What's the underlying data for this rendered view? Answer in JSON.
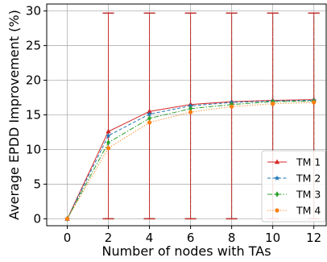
{
  "chart_data": {
    "type": "line",
    "xlabel": "Number of nodes with TAs",
    "ylabel": "Average EPDD Improvement (%)",
    "xlim": [
      -1,
      12.6
    ],
    "ylim": [
      -1,
      31
    ],
    "x_ticks": [
      "0",
      "2",
      "4",
      "6",
      "8",
      "10",
      "12"
    ],
    "y_ticks": [
      "0",
      "5",
      "10",
      "15",
      "20",
      "25",
      "30"
    ],
    "grid": true,
    "legend_position": "lower-right",
    "x": [
      0,
      2,
      4,
      6,
      8,
      10,
      12
    ],
    "error_low": [
      0,
      0,
      0,
      0,
      0,
      0,
      0
    ],
    "error_high": [
      0,
      29.7,
      29.7,
      29.7,
      29.7,
      29.7,
      29.7
    ],
    "series": [
      {
        "name": "TM 1",
        "values": [
          0,
          12.6,
          15.5,
          16.5,
          16.9,
          17.1,
          17.2
        ],
        "color": "#d62728",
        "marker": "triangle",
        "dash": "solid"
      },
      {
        "name": "TM 2",
        "values": [
          0,
          12.0,
          15.1,
          16.3,
          16.8,
          17.0,
          17.1
        ],
        "color": "#1f77b4",
        "marker": "star",
        "dash": "dashed"
      },
      {
        "name": "TM 3",
        "values": [
          0,
          11.0,
          14.5,
          15.9,
          16.5,
          16.9,
          17.0
        ],
        "color": "#2ca02c",
        "marker": "diamond",
        "dash": "dashdot"
      },
      {
        "name": "TM 4",
        "values": [
          0,
          10.2,
          13.9,
          15.4,
          16.2,
          16.6,
          16.8
        ],
        "color": "#ff7f0e",
        "marker": "circle",
        "dash": "dotted"
      }
    ]
  }
}
